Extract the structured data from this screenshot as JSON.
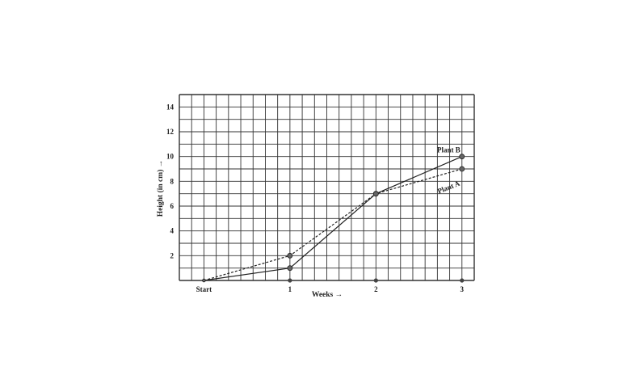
{
  "chart_data": {
    "type": "line",
    "x": [
      "Start",
      "1",
      "2",
      "3"
    ],
    "series": [
      {
        "name": "Plant A",
        "values": [
          0,
          2,
          7,
          9
        ],
        "style": "dashed",
        "color": "#222222"
      },
      {
        "name": "Plant B",
        "values": [
          0,
          1,
          7,
          10
        ],
        "style": "solid",
        "color": "#222222"
      }
    ],
    "xlabel": "Weeks →",
    "ylabel": "Height (in cm) →",
    "ylim": [
      0,
      15
    ],
    "yticks": [
      2,
      4,
      6,
      8,
      10,
      12,
      14
    ],
    "grid": true,
    "legend": "labels at line ends"
  }
}
